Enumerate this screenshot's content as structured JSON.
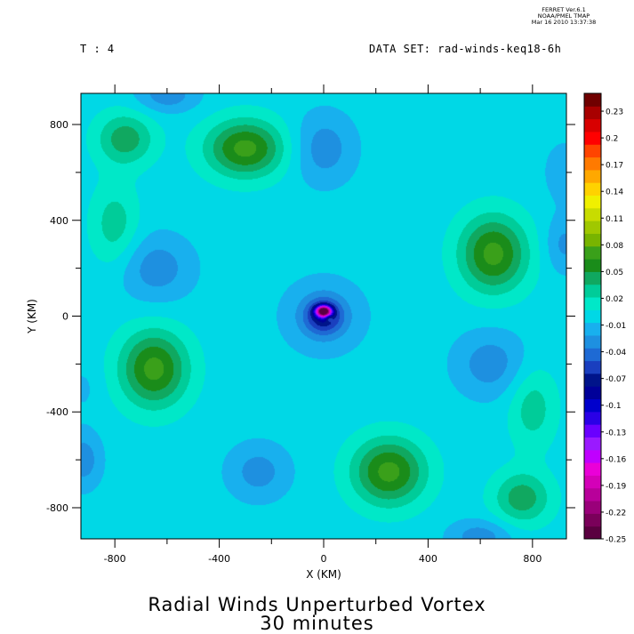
{
  "header": {
    "stamp_line1": "FERRET Ver.6.1",
    "stamp_line2": "NOAA/PMEL TMAP",
    "stamp_line3": "Mar 16 2010 13:37:38",
    "time_label": "T : 4",
    "dataset_label": "DATA SET: rad-winds-keq18-6h"
  },
  "chart_data": {
    "type": "heatmap",
    "title": "Radial Winds Unperturbed Vortex",
    "subtitle": "30 minutes",
    "xlabel": "X (KM)",
    "ylabel": "Y (KM)",
    "xlim": [
      -930,
      930
    ],
    "ylim": [
      -930,
      930
    ],
    "x_ticks": [
      -800,
      -400,
      0,
      400,
      800
    ],
    "y_ticks": [
      800,
      400,
      0,
      -400,
      -800
    ],
    "x_tick_labels": [
      "-800",
      "-400",
      "0",
      "400",
      "800"
    ],
    "y_tick_labels": [
      "800",
      "400",
      "0",
      "-400",
      "-800"
    ],
    "colorbar": {
      "min": -0.25,
      "max": 0.25,
      "labels": [
        "0.23",
        "0.2",
        "0.17",
        "0.14",
        "0.11",
        "0.08",
        "0.05",
        "0.02",
        "-0.01",
        "-0.04",
        "-0.07",
        "-0.1",
        "-0.13",
        "-0.16",
        "-0.19",
        "-0.22",
        "-0.25"
      ],
      "label_values": [
        0.23,
        0.2,
        0.17,
        0.14,
        0.11,
        0.08,
        0.05,
        0.02,
        -0.01,
        -0.04,
        -0.07,
        -0.1,
        -0.13,
        -0.16,
        -0.19,
        -0.22,
        -0.25
      ],
      "colors_bottom_to_top": [
        "#5a0040",
        "#7a005a",
        "#9a007a",
        "#b8009a",
        "#d400b8",
        "#ea00d8",
        "#c000ff",
        "#9a1aff",
        "#6a00ff",
        "#2a00e6",
        "#0000cc",
        "#000099",
        "#00148a",
        "#1a3fbf",
        "#1e6ad4",
        "#1e90e0",
        "#18b0ee",
        "#00d8e6",
        "#00e8c8",
        "#00cc99",
        "#10a860",
        "#1a8c1a",
        "#3aa01a",
        "#78b400",
        "#a0c800",
        "#c8dc00",
        "#f0f000",
        "#ffd200",
        "#ffa800",
        "#ff7a00",
        "#ff4400",
        "#ff0000",
        "#d80000",
        "#a80000",
        "#700000"
      ]
    },
    "features": {
      "domain_value": 0.0,
      "background_value": 0.0,
      "bumps": [
        {
          "x": 0,
          "y": 20,
          "value": -0.22,
          "sx": 28,
          "sy": 22
        },
        {
          "x": 20,
          "y": -8,
          "value": 0.035,
          "sx": 14,
          "sy": 14
        },
        {
          "x": 0,
          "y": 0,
          "value": -0.06,
          "sx": 70,
          "sy": 70
        },
        {
          "x": 0,
          "y": 0,
          "value": -0.025,
          "sx": 160,
          "sy": 160
        },
        {
          "x": -300,
          "y": 700,
          "value": 0.07,
          "sx": 150,
          "sy": 120
        },
        {
          "x": 650,
          "y": 260,
          "value": 0.07,
          "sx": 130,
          "sy": 160
        },
        {
          "x": -650,
          "y": -220,
          "value": 0.07,
          "sx": 130,
          "sy": 160
        },
        {
          "x": 250,
          "y": -650,
          "value": 0.07,
          "sx": 140,
          "sy": 140
        },
        {
          "x": -760,
          "y": 740,
          "value": 0.045,
          "sx": 110,
          "sy": 110
        },
        {
          "x": 760,
          "y": -760,
          "value": 0.045,
          "sx": 110,
          "sy": 110
        },
        {
          "x": -800,
          "y": 380,
          "value": 0.03,
          "sx": 90,
          "sy": 170
        },
        {
          "x": 800,
          "y": -380,
          "value": 0.03,
          "sx": 90,
          "sy": 170
        },
        {
          "x": 0,
          "y": 700,
          "value": -0.03,
          "sx": 120,
          "sy": 150
        },
        {
          "x": -640,
          "y": 200,
          "value": -0.03,
          "sx": 140,
          "sy": 140
        },
        {
          "x": 640,
          "y": -200,
          "value": -0.03,
          "sx": 140,
          "sy": 140
        },
        {
          "x": -250,
          "y": -650,
          "value": -0.028,
          "sx": 120,
          "sy": 120
        },
        {
          "x": -600,
          "y": 920,
          "value": -0.03,
          "sx": 120,
          "sy": 70
        },
        {
          "x": 600,
          "y": -920,
          "value": -0.03,
          "sx": 120,
          "sy": 70
        },
        {
          "x": 920,
          "y": 300,
          "value": -0.025,
          "sx": 70,
          "sy": 120
        },
        {
          "x": -920,
          "y": -600,
          "value": -0.03,
          "sx": 70,
          "sy": 120
        },
        {
          "x": 920,
          "y": 600,
          "value": -0.02,
          "sx": 70,
          "sy": 120
        },
        {
          "x": -920,
          "y": -300,
          "value": -0.01,
          "sx": 60,
          "sy": 100
        }
      ]
    }
  }
}
